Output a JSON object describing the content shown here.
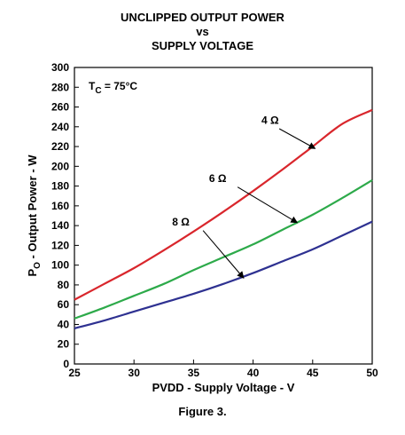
{
  "chart_data": {
    "type": "line",
    "title_lines": [
      "UNCLIPPED OUTPUT POWER",
      "vs",
      "SUPPLY VOLTAGE"
    ],
    "xlabel": "PVDD - Supply Voltage - V",
    "ylabel_main": "P",
    "ylabel_sub": "O",
    "ylabel_rest": " - Output Power - W",
    "xlim": [
      25,
      50
    ],
    "ylim": [
      0,
      300
    ],
    "x_ticks": [
      25,
      30,
      35,
      40,
      45,
      50
    ],
    "y_ticks": [
      0,
      20,
      40,
      60,
      80,
      100,
      120,
      140,
      160,
      180,
      200,
      220,
      240,
      260,
      280,
      300
    ],
    "condition_main": "T",
    "condition_sub": "C",
    "condition_rest": " = 75°C",
    "grid": false,
    "series": [
      {
        "name": "4 Ω",
        "color": "#d9262c",
        "x": [
          25,
          27.5,
          30,
          32.5,
          35,
          37.5,
          40,
          42.5,
          45,
          47.5,
          50
        ],
        "y": [
          65,
          81,
          97,
          115,
          134,
          154,
          175,
          197,
          220,
          243,
          257
        ]
      },
      {
        "name": "6 Ω",
        "color": "#2daa4a",
        "x": [
          25,
          27.5,
          30,
          32.5,
          35,
          37.5,
          40,
          42.5,
          45,
          47.5,
          50
        ],
        "y": [
          46,
          57,
          69,
          81,
          95,
          108,
          121,
          136,
          151,
          168,
          186
        ]
      },
      {
        "name": "8 Ω",
        "color": "#2e3191",
        "x": [
          25,
          27.5,
          30,
          32.5,
          35,
          37.5,
          40,
          42.5,
          45,
          47.5,
          50
        ],
        "y": [
          36,
          44,
          53,
          62,
          71,
          81,
          92,
          104,
          116,
          130,
          144
        ]
      }
    ],
    "annotations": [
      {
        "label": "4 Ω",
        "text_at": [
          40.7,
          243
        ],
        "arrow_from": [
          42.2,
          238
        ],
        "arrow_to": [
          45.2,
          218
        ]
      },
      {
        "label": "6 Ω",
        "text_at": [
          36.3,
          184
        ],
        "arrow_from": [
          38.7,
          179
        ],
        "arrow_to": [
          43.7,
          143
        ]
      },
      {
        "label": "8 Ω",
        "text_at": [
          33.2,
          140
        ],
        "arrow_from": [
          35.8,
          135
        ],
        "arrow_to": [
          39.2,
          87
        ]
      }
    ]
  },
  "caption": "Figure 3."
}
